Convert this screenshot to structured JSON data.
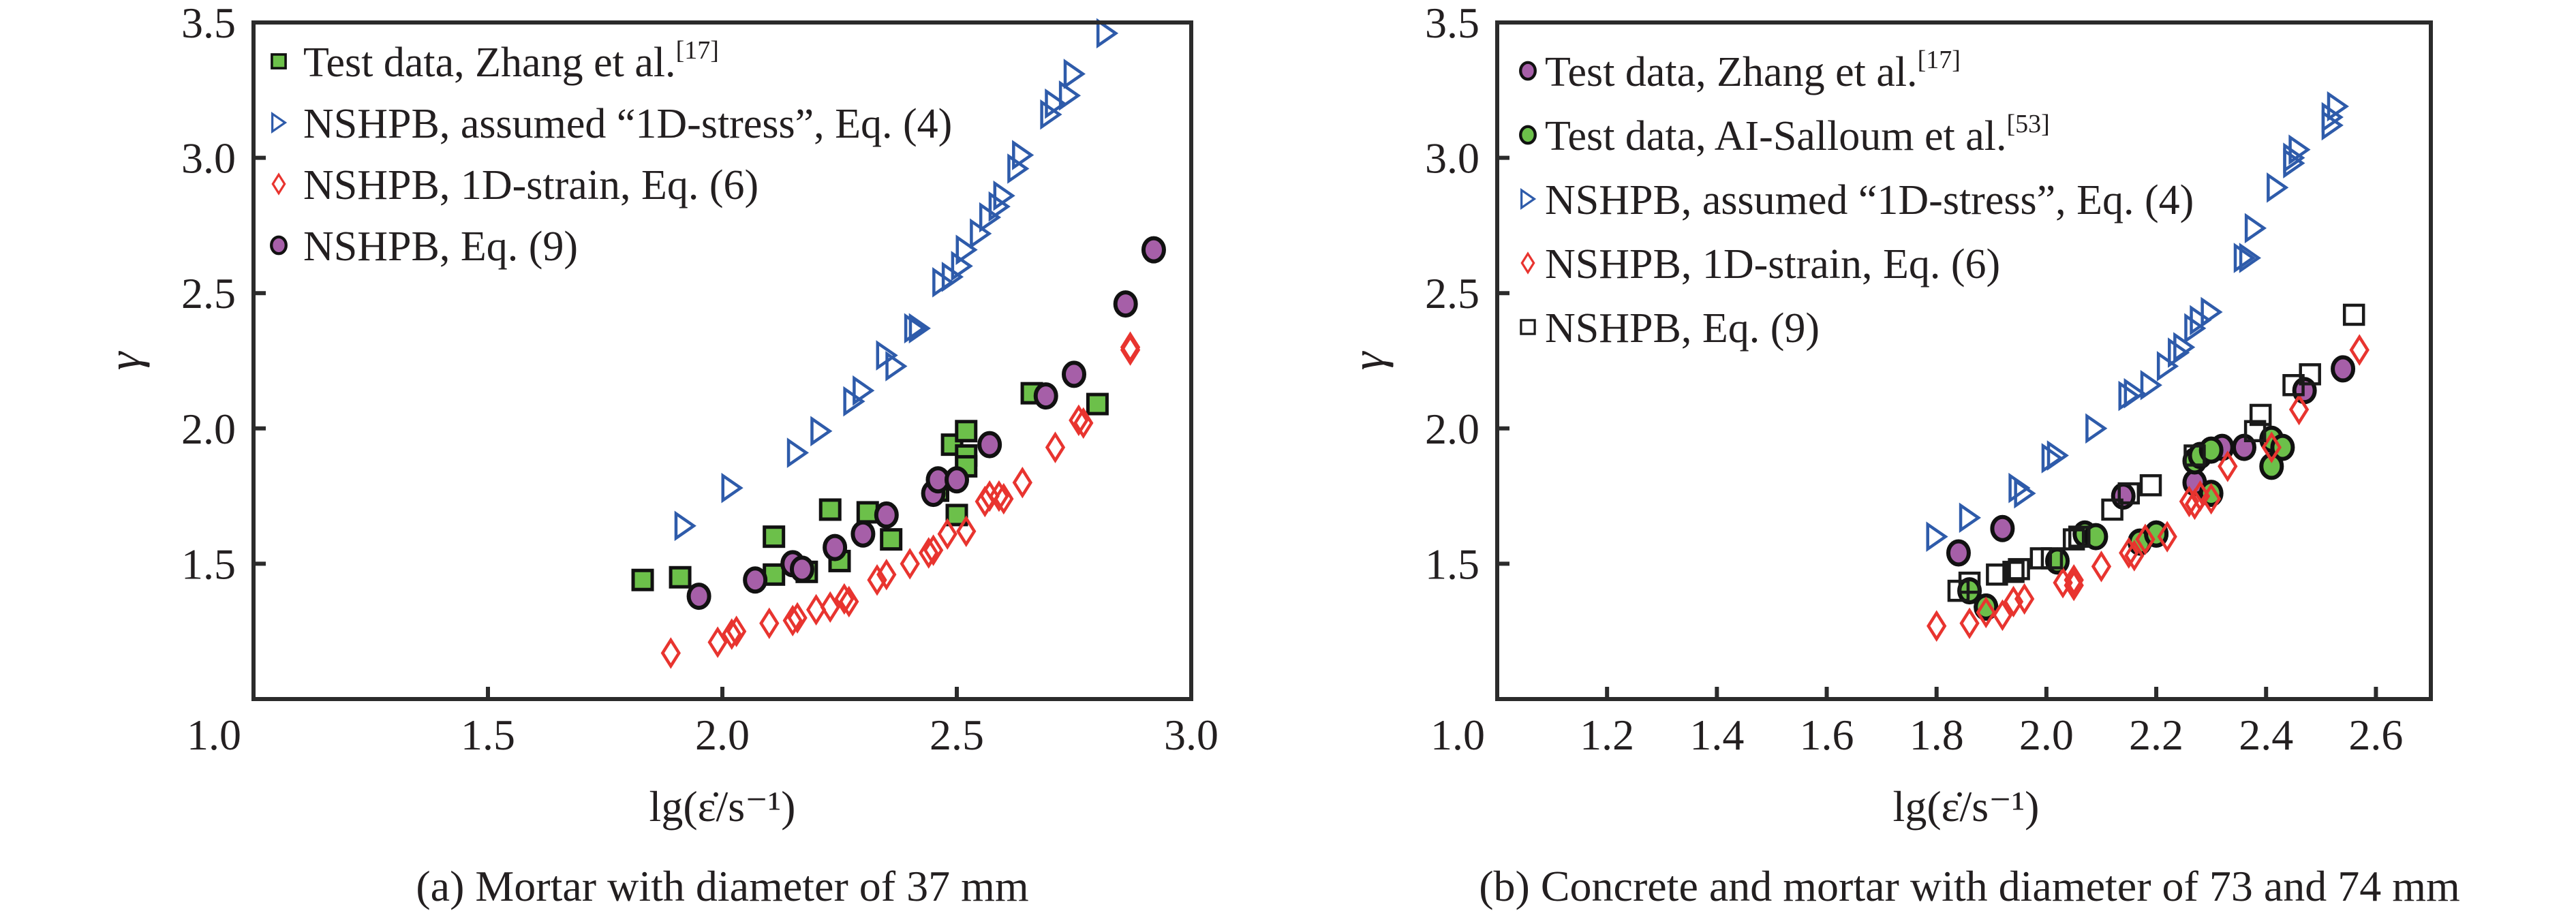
{
  "figure": {
    "captions": [
      "(a) Mortar with diameter of 37 mm",
      "(b) Concrete and mortar with diameter of 73 and 74 mm"
    ]
  },
  "colors": {
    "green": "#6cc04a",
    "purple": "#a65fa8",
    "blue": "#2e5baa",
    "red": "#e8342f",
    "black": "#1a1a1a",
    "axis": "#2b2b2b"
  },
  "chart_data": [
    {
      "type": "scatter",
      "title": "(a) Mortar with diameter of 37 mm",
      "xlabel": "lg(ε̇/s⁻¹)",
      "ylabel": "γ",
      "xlim": [
        1.0,
        3.0
      ],
      "ylim": [
        1.0,
        3.5
      ],
      "xticks": [
        "1.0",
        "1.5",
        "2.0",
        "2.5",
        "3.0"
      ],
      "xtick_values": [
        1.0,
        1.5,
        2.0,
        2.5,
        3.0
      ],
      "yticks": [
        "1.5",
        "2.0",
        "2.5",
        "3.0",
        "3.5"
      ],
      "ytick_values": [
        1.5,
        2.0,
        2.5,
        3.0,
        3.5
      ],
      "grid": false,
      "legend_position": "top-left",
      "series": [
        {
          "name": "Test data, Zhang et al.",
          "ref": "[17]",
          "marker": "square-filled",
          "color": "#6cc04a",
          "points": [
            [
              1.83,
              1.44
            ],
            [
              1.91,
              1.45
            ],
            [
              2.11,
              1.6
            ],
            [
              2.11,
              1.46
            ],
            [
              2.18,
              1.47
            ],
            [
              2.23,
              1.7
            ],
            [
              2.25,
              1.51
            ],
            [
              2.31,
              1.69
            ],
            [
              2.36,
              1.59
            ],
            [
              2.46,
              1.77
            ],
            [
              2.49,
              1.94
            ],
            [
              2.52,
              1.99
            ],
            [
              2.52,
              1.9
            ],
            [
              2.52,
              1.86
            ],
            [
              2.5,
              1.68
            ],
            [
              2.66,
              2.13
            ],
            [
              2.8,
              2.09
            ]
          ]
        },
        {
          "name": "NSHPB, assumed “1D-stress”, Eq. (4)",
          "ref": "",
          "marker": "triangle-right-open",
          "color": "#2e5baa",
          "points": [
            [
              1.92,
              1.64
            ],
            [
              2.02,
              1.78
            ],
            [
              2.16,
              1.91
            ],
            [
              2.21,
              1.99
            ],
            [
              2.28,
              2.1
            ],
            [
              2.3,
              2.14
            ],
            [
              2.35,
              2.27
            ],
            [
              2.37,
              2.23
            ],
            [
              2.41,
              2.37
            ],
            [
              2.42,
              2.37
            ],
            [
              2.47,
              2.54
            ],
            [
              2.49,
              2.56
            ],
            [
              2.51,
              2.6
            ],
            [
              2.52,
              2.66
            ],
            [
              2.55,
              2.72
            ],
            [
              2.57,
              2.78
            ],
            [
              2.59,
              2.82
            ],
            [
              2.6,
              2.86
            ],
            [
              2.63,
              2.96
            ],
            [
              2.64,
              3.01
            ],
            [
              2.7,
              3.16
            ],
            [
              2.71,
              3.2
            ],
            [
              2.74,
              3.23
            ],
            [
              2.75,
              3.31
            ],
            [
              2.82,
              3.46
            ]
          ]
        },
        {
          "name": "NSHPB, 1D-strain, Eq. (6)",
          "ref": "",
          "marker": "diamond-open",
          "color": "#e8342f",
          "points": [
            [
              1.89,
              1.17
            ],
            [
              1.99,
              1.21
            ],
            [
              2.02,
              1.24
            ],
            [
              2.03,
              1.25
            ],
            [
              2.1,
              1.28
            ],
            [
              2.15,
              1.29
            ],
            [
              2.16,
              1.3
            ],
            [
              2.2,
              1.33
            ],
            [
              2.23,
              1.34
            ],
            [
              2.26,
              1.37
            ],
            [
              2.27,
              1.36
            ],
            [
              2.33,
              1.44
            ],
            [
              2.35,
              1.46
            ],
            [
              2.4,
              1.5
            ],
            [
              2.44,
              1.54
            ],
            [
              2.45,
              1.55
            ],
            [
              2.48,
              1.61
            ],
            [
              2.52,
              1.62
            ],
            [
              2.56,
              1.73
            ],
            [
              2.57,
              1.75
            ],
            [
              2.59,
              1.75
            ],
            [
              2.6,
              1.74
            ],
            [
              2.64,
              1.8
            ],
            [
              2.71,
              1.93
            ],
            [
              2.76,
              2.03
            ],
            [
              2.77,
              2.02
            ],
            [
              2.87,
              2.3
            ],
            [
              2.87,
              2.29
            ]
          ]
        },
        {
          "name": "NSHPB, Eq. (9)",
          "ref": "",
          "marker": "circle-filled",
          "color": "#a65fa8",
          "points": [
            [
              1.95,
              1.38
            ],
            [
              2.07,
              1.44
            ],
            [
              2.15,
              1.5
            ],
            [
              2.17,
              1.48
            ],
            [
              2.24,
              1.56
            ],
            [
              2.3,
              1.61
            ],
            [
              2.35,
              1.68
            ],
            [
              2.45,
              1.76
            ],
            [
              2.46,
              1.81
            ],
            [
              2.5,
              1.81
            ],
            [
              2.57,
              1.94
            ],
            [
              2.69,
              2.12
            ],
            [
              2.75,
              2.2
            ],
            [
              2.86,
              2.46
            ],
            [
              2.92,
              2.66
            ]
          ]
        }
      ]
    },
    {
      "type": "scatter",
      "title": "(b) Concrete and mortar with diameter of 73 and 74 mm",
      "xlabel": "lg(ε̇/s⁻¹)",
      "ylabel": "γ",
      "xlim": [
        1.0,
        2.7
      ],
      "ylim": [
        1.0,
        3.5
      ],
      "xticks": [
        "1.0",
        "1.2",
        "1.4",
        "1.6",
        "1.8",
        "2.0",
        "2.2",
        "2.4",
        "2.6"
      ],
      "xtick_values": [
        1.0,
        1.2,
        1.4,
        1.6,
        1.8,
        2.0,
        2.2,
        2.4,
        2.6
      ],
      "yticks": [
        "1.5",
        "2.0",
        "2.5",
        "3.0",
        "3.5"
      ],
      "ytick_values": [
        1.5,
        2.0,
        2.5,
        3.0,
        3.5
      ],
      "grid": false,
      "legend_position": "top-left",
      "series": [
        {
          "name": "Test data, Zhang et al.",
          "ref": "[17]",
          "marker": "circle-filled",
          "color": "#a65fa8",
          "points": [
            [
              1.84,
              1.54
            ],
            [
              1.92,
              1.63
            ],
            [
              2.14,
              1.75
            ],
            [
              2.27,
              1.8
            ],
            [
              2.32,
              1.93
            ],
            [
              2.36,
              1.93
            ],
            [
              2.47,
              2.14
            ],
            [
              2.54,
              2.22
            ],
            [
              2.2,
              1.61
            ],
            [
              1.89,
              1.34
            ]
          ]
        },
        {
          "name": "Test data, AI-Salloum et al.",
          "ref": "[53]",
          "marker": "circle-filled",
          "color": "#6cc04a",
          "points": [
            [
              1.86,
              1.4
            ],
            [
              1.89,
              1.34
            ],
            [
              2.02,
              1.51
            ],
            [
              2.07,
              1.61
            ],
            [
              2.09,
              1.6
            ],
            [
              2.17,
              1.58
            ],
            [
              2.2,
              1.61
            ],
            [
              2.27,
              1.88
            ],
            [
              2.28,
              1.9
            ],
            [
              2.3,
              1.92
            ],
            [
              2.3,
              1.76
            ],
            [
              2.41,
              1.96
            ],
            [
              2.43,
              1.93
            ],
            [
              2.41,
              1.86
            ]
          ]
        },
        {
          "name": "NSHPB, assumed “1D-stress”, Eq. (4)",
          "ref": "",
          "marker": "triangle-right-open",
          "color": "#2e5baa",
          "points": [
            [
              1.8,
              1.6
            ],
            [
              1.86,
              1.67
            ],
            [
              1.95,
              1.78
            ],
            [
              1.96,
              1.76
            ],
            [
              2.01,
              1.89
            ],
            [
              2.02,
              1.9
            ],
            [
              2.09,
              2.0
            ],
            [
              2.15,
              2.12
            ],
            [
              2.16,
              2.13
            ],
            [
              2.19,
              2.16
            ],
            [
              2.22,
              2.23
            ],
            [
              2.24,
              2.28
            ],
            [
              2.25,
              2.3
            ],
            [
              2.27,
              2.37
            ],
            [
              2.28,
              2.4
            ],
            [
              2.3,
              2.43
            ],
            [
              2.36,
              2.63
            ],
            [
              2.37,
              2.63
            ],
            [
              2.38,
              2.74
            ],
            [
              2.42,
              2.89
            ],
            [
              2.45,
              2.98
            ],
            [
              2.45,
              3.0
            ],
            [
              2.46,
              3.03
            ],
            [
              2.52,
              3.12
            ],
            [
              2.52,
              3.15
            ],
            [
              2.53,
              3.19
            ]
          ]
        },
        {
          "name": "NSHPB, 1D-strain, Eq. (6)",
          "ref": "",
          "marker": "diamond-open",
          "color": "#e8342f",
          "points": [
            [
              1.8,
              1.27
            ],
            [
              1.86,
              1.28
            ],
            [
              1.89,
              1.32
            ],
            [
              1.92,
              1.31
            ],
            [
              1.94,
              1.36
            ],
            [
              1.96,
              1.37
            ],
            [
              2.03,
              1.43
            ],
            [
              2.05,
              1.42
            ],
            [
              2.05,
              1.44
            ],
            [
              2.1,
              1.49
            ],
            [
              2.15,
              1.54
            ],
            [
              2.16,
              1.53
            ],
            [
              2.18,
              1.59
            ],
            [
              2.22,
              1.6
            ],
            [
              2.26,
              1.73
            ],
            [
              2.27,
              1.72
            ],
            [
              2.28,
              1.75
            ],
            [
              2.3,
              1.74
            ],
            [
              2.33,
              1.86
            ],
            [
              2.41,
              1.93
            ],
            [
              2.46,
              2.07
            ],
            [
              2.57,
              2.29
            ]
          ]
        },
        {
          "name": "NSHPB, Eq. (9)",
          "ref": "",
          "marker": "square-open",
          "color": "#1a1a1a",
          "points": [
            [
              1.84,
              1.4
            ],
            [
              1.86,
              1.43
            ],
            [
              1.91,
              1.46
            ],
            [
              1.94,
              1.47
            ],
            [
              1.95,
              1.48
            ],
            [
              1.99,
              1.52
            ],
            [
              2.01,
              1.52
            ],
            [
              2.05,
              1.59
            ],
            [
              2.06,
              1.6
            ],
            [
              2.12,
              1.7
            ],
            [
              2.15,
              1.76
            ],
            [
              2.19,
              1.79
            ],
            [
              2.27,
              1.9
            ],
            [
              2.38,
              1.99
            ],
            [
              2.39,
              2.05
            ],
            [
              2.45,
              2.16
            ],
            [
              2.48,
              2.2
            ],
            [
              2.56,
              2.42
            ]
          ]
        }
      ]
    }
  ]
}
